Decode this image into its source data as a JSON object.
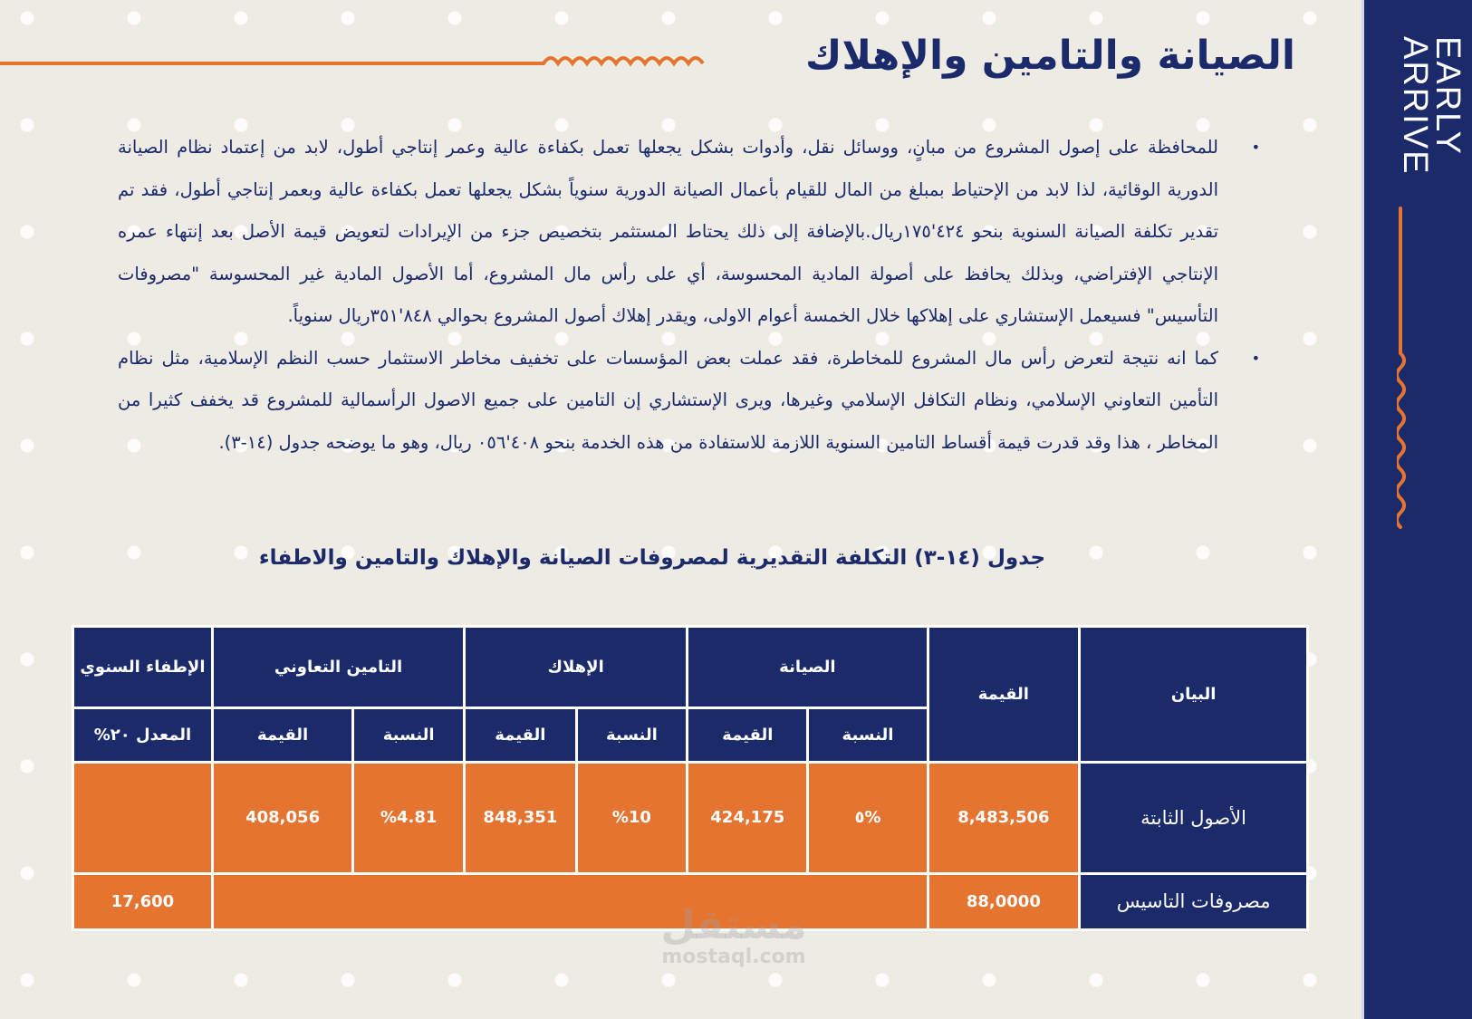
{
  "brand": {
    "logo_text_line1": "EARLY",
    "logo_text_line2": "ARRIVE",
    "navy": "#1b2a6b",
    "orange": "#e57431",
    "background": "#eeebe5"
  },
  "title": "الصيانة والتامين والإهلاك",
  "paragraphs": [
    "للمحافظة على إصول المشروع من مبانٍ، ووسائل نقل، وأدوات بشكل يجعلها تعمل بكفاءة عالية وعمر إنتاجي أطول، لابد من إعتماد نظام الصيانة الدورية الوقائية، لذا لابد من الإحتياط بمبلغ من المال للقيام بأعمال الصيانة الدورية سنوياً بشكل يجعلها تعمل بكفاءة عالية وبعمر إنتاجي أطول، فقد تم تقدير تكلفة الصيانة السنوية بنحو ٤٢٤'١٧٥ريال.بالإضافة إلى ذلك يحتاط المستثمر بتخصيص جزء من الإيرادات لتعويض قيمة الأصل بعد إنتهاء عمره الإنتاجي الإفتراضي، وبذلك يحافظ على أصولة المادية المحسوسة، أي على رأس مال المشروع، أما الأصول المادية غير المحسوسة \"مصروفات التأسيس\" فسيعمل الإستشاري على إهلاكها خلال الخمسة أعوام الاولى، ويقدر إهلاك أصول المشروع بحوالي ٨٤٨'٣٥١ريال سنوياً.",
    "كما انه نتيجة لتعرض رأس مال المشروع للمخاطرة، فقد عملت بعض المؤسسات على تخفيف مخاطر الاستثمار حسب النظم الإسلامية، مثل نظام التأمين التعاوني الإسلامي، ونظام التكافل الإسلامي وغيرها، ويرى الإستشاري إن التامين على جميع الاصول الرأسمالية للمشروع قد يخفف كثيرا من المخاطر ، هذا وقد قدرت قيمة أقساط التامين السنوية اللازمة للاستفادة من هذه الخدمة بنحو ٤٠٨'٠٥٦ ريال، وهو ما يوضحه جدول (١٤-٣)."
  ],
  "table_caption": "جدول (١٤-٣) التكلفة التقديرية لمصروفات الصيانة والإهلاك والتامين والاطفاء",
  "table": {
    "header_top": {
      "item": "البيان",
      "value": "القيمة",
      "maintenance": "الصيانة",
      "depreciation": "الإهلاك",
      "insurance": "التامين التعاوني",
      "amortization": "الإطفاء السنوي"
    },
    "header_sub": [
      "النسبة",
      "القيمة",
      "النسبة",
      "القيمة",
      "النسبة",
      "القيمة",
      "المعدل ٢٠%"
    ],
    "rows": [
      {
        "item": "الأصول الثابتة",
        "value": "8,483,506",
        "cells": [
          "%٥",
          "424,175",
          "%10",
          "848,351",
          "%4.81",
          "408,056",
          ""
        ]
      },
      {
        "item": "مصروفات التاسيس",
        "value": "88,0000",
        "amortization": "17,600"
      }
    ]
  },
  "watermark": {
    "arabic": "مستقل",
    "latin": "mostaql.com"
  }
}
